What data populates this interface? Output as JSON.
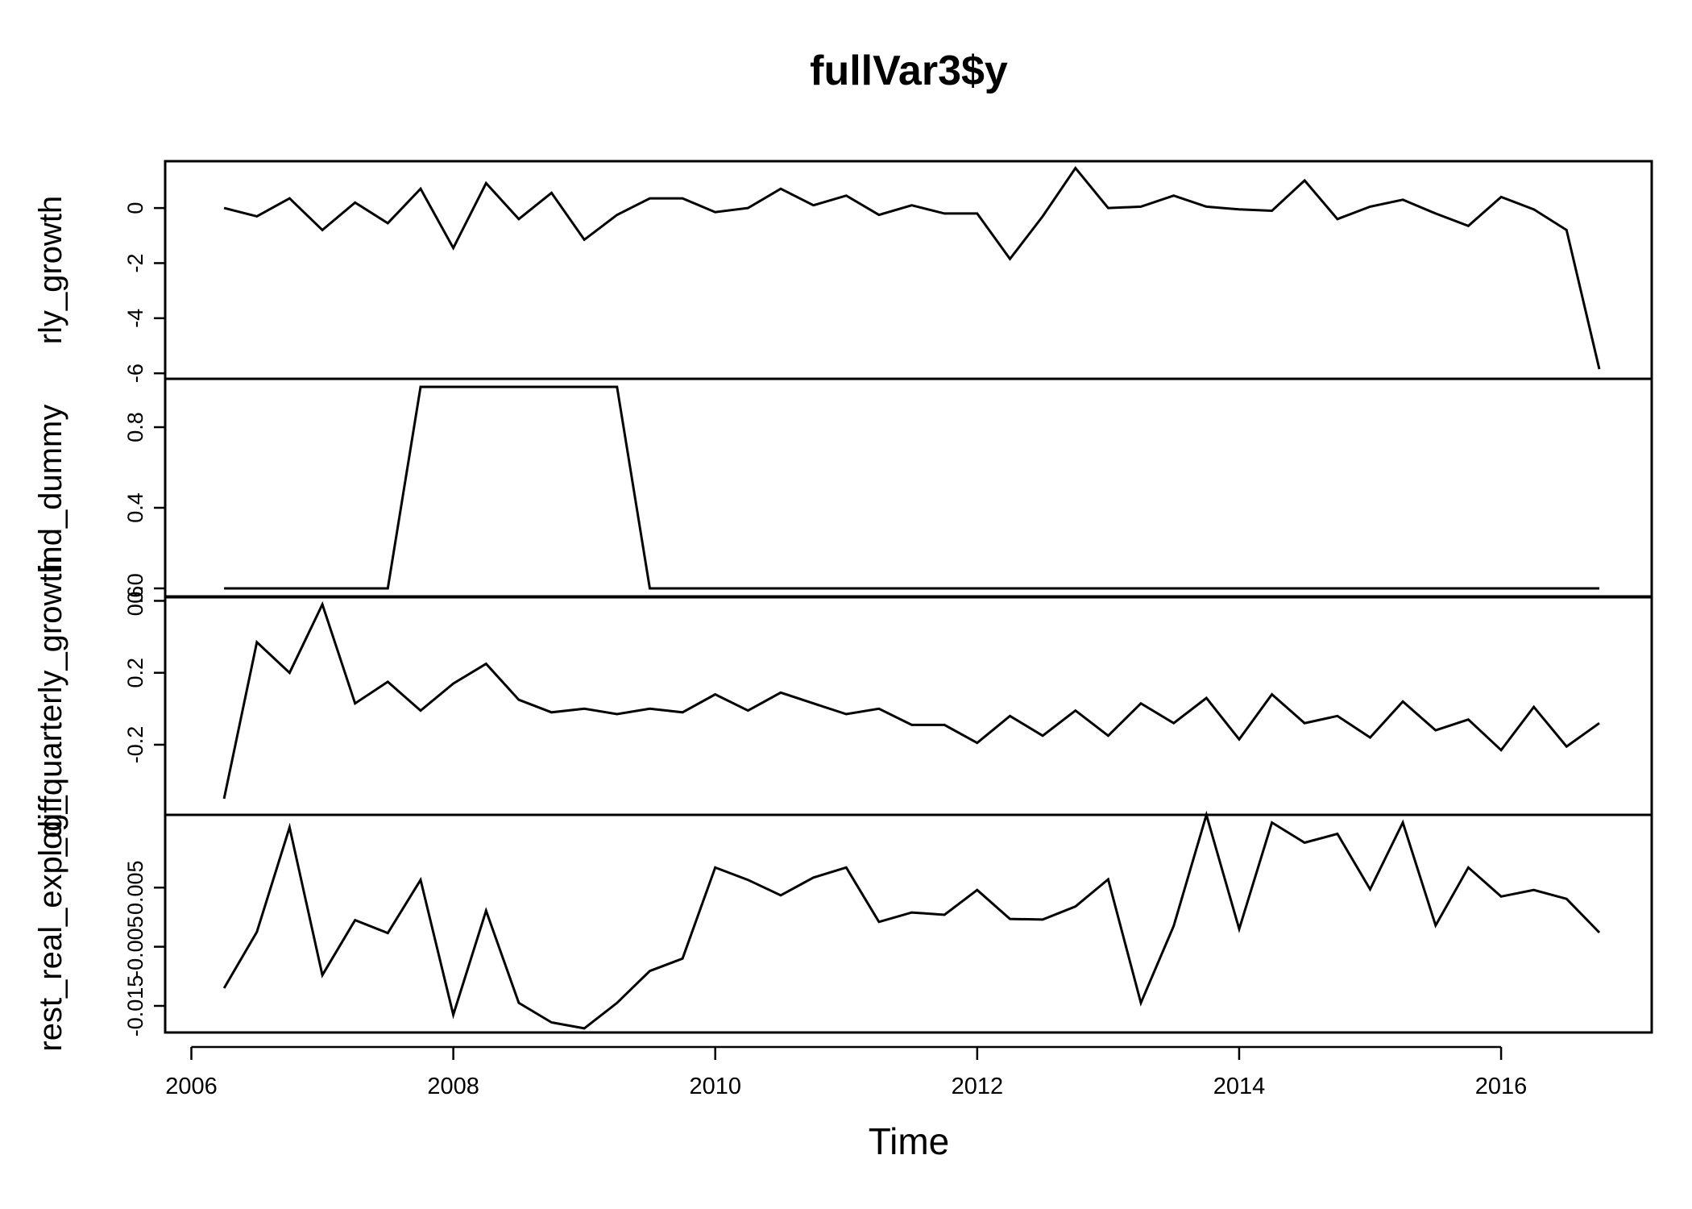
{
  "chart_data": {
    "type": "line",
    "title": "fullVar3$y",
    "xlabel": "Time",
    "xlim": [
      2005.8,
      2017.15
    ],
    "x_ticks": [
      2006,
      2008,
      2010,
      2012,
      2014,
      2016
    ],
    "x_tick_labels": [
      "2006",
      "2008",
      "2010",
      "2012",
      "2014",
      "2016"
    ],
    "x": [
      2006.25,
      2006.5,
      2006.75,
      2007.0,
      2007.25,
      2007.5,
      2007.75,
      2008.0,
      2008.25,
      2008.5,
      2008.75,
      2009.0,
      2009.25,
      2009.5,
      2009.75,
      2010.0,
      2010.25,
      2010.5,
      2010.75,
      2011.0,
      2011.25,
      2011.5,
      2011.75,
      2012.0,
      2012.25,
      2012.5,
      2012.75,
      2013.0,
      2013.25,
      2013.5,
      2013.75,
      2014.0,
      2014.25,
      2014.5,
      2014.75,
      2015.0,
      2015.25,
      2015.5,
      2015.75,
      2016.0,
      2016.25,
      2016.5,
      2016.75
    ],
    "series": [
      {
        "name": "quarterly_growth",
        "ylim": [
          -6.2,
          1.7
        ],
        "y_ticks": [
          -6,
          -4,
          -2,
          0
        ],
        "y_tick_labels": [
          "-6",
          "-4",
          "-2",
          "0"
        ],
        "values": [
          0.0,
          -0.3,
          0.35,
          -0.8,
          0.2,
          -0.55,
          0.7,
          -1.45,
          0.9,
          -0.4,
          0.55,
          -1.15,
          -0.25,
          0.35,
          0.35,
          -0.15,
          0.0,
          0.7,
          0.1,
          0.45,
          -0.25,
          0.1,
          -0.2,
          -0.2,
          -1.85,
          -0.3,
          1.45,
          0.0,
          0.05,
          0.45,
          0.05,
          -0.05,
          -0.1,
          1.0,
          -0.4,
          0.05,
          0.3,
          -0.2,
          -0.65,
          0.4,
          -0.05,
          -0.8,
          -5.85
        ]
      },
      {
        "name": "ind_dummy",
        "ylim": [
          -0.04,
          1.04
        ],
        "y_ticks": [
          0.0,
          0.4,
          0.8
        ],
        "y_tick_labels": [
          "0.0",
          "0.4",
          "0.8"
        ],
        "values": [
          0,
          0,
          0,
          0,
          0,
          0,
          1,
          1,
          1,
          1,
          1,
          1,
          1,
          0,
          0,
          0,
          0,
          0,
          0,
          0,
          0,
          0,
          0,
          0,
          0,
          0,
          0,
          0,
          0,
          0,
          0,
          0,
          0,
          0,
          0,
          0,
          0,
          0,
          0,
          0,
          0,
          0,
          0
        ]
      },
      {
        "name": "log_quarterly_growth",
        "ylim": [
          -0.59,
          0.62
        ],
        "y_ticks": [
          -0.2,
          0.2,
          0.6
        ],
        "y_tick_labels": [
          "-0.2",
          "0.2",
          "0.6"
        ],
        "values": [
          -0.5,
          0.37,
          0.2,
          0.58,
          0.03,
          0.15,
          -0.01,
          0.14,
          0.25,
          0.05,
          -0.02,
          0.0,
          -0.03,
          0.0,
          -0.02,
          0.08,
          -0.01,
          0.09,
          0.03,
          -0.03,
          0.0,
          -0.09,
          -0.09,
          -0.19,
          -0.04,
          -0.15,
          -0.01,
          -0.15,
          0.03,
          -0.08,
          0.06,
          -0.17,
          0.08,
          -0.08,
          -0.04,
          -0.16,
          0.04,
          -0.12,
          -0.06,
          -0.23,
          0.01,
          -0.21,
          -0.08
        ]
      },
      {
        "name": "rest_real_exp_diff",
        "ylim": [
          -0.0195,
          0.0173
        ],
        "y_ticks": [
          -0.015,
          -0.005,
          0.005
        ],
        "y_tick_labels": [
          "-0.015",
          "-0.005",
          "0.005"
        ],
        "values": [
          -0.012,
          -0.0025,
          0.0152,
          -0.0098,
          -0.0005,
          -0.0027,
          0.0063,
          -0.0165,
          0.0011,
          -0.0145,
          -0.0178,
          -0.0188,
          -0.0145,
          -0.0091,
          -0.007,
          0.0084,
          0.0063,
          0.0037,
          0.0067,
          0.0084,
          -0.0008,
          0.0008,
          0.0004,
          0.0046,
          -0.0003,
          -0.0004,
          0.0018,
          0.0064,
          -0.0145,
          -0.0015,
          0.0173,
          -0.002,
          0.016,
          0.0126,
          0.0141,
          0.0047,
          0.016,
          -0.0014,
          0.0084,
          0.0035,
          0.0046,
          0.0031,
          -0.0026
        ]
      }
    ],
    "panel_labels": [
      "quarterly_growth",
      "ind_dummy",
      "log_quarterly_growth",
      "rest_real_exp_diff"
    ],
    "panel_labels_rendered": [
      "rly_growth",
      "ind_dummy",
      "log_quarterly_growth",
      "rest_real_exp_diff"
    ],
    "grid": false
  }
}
